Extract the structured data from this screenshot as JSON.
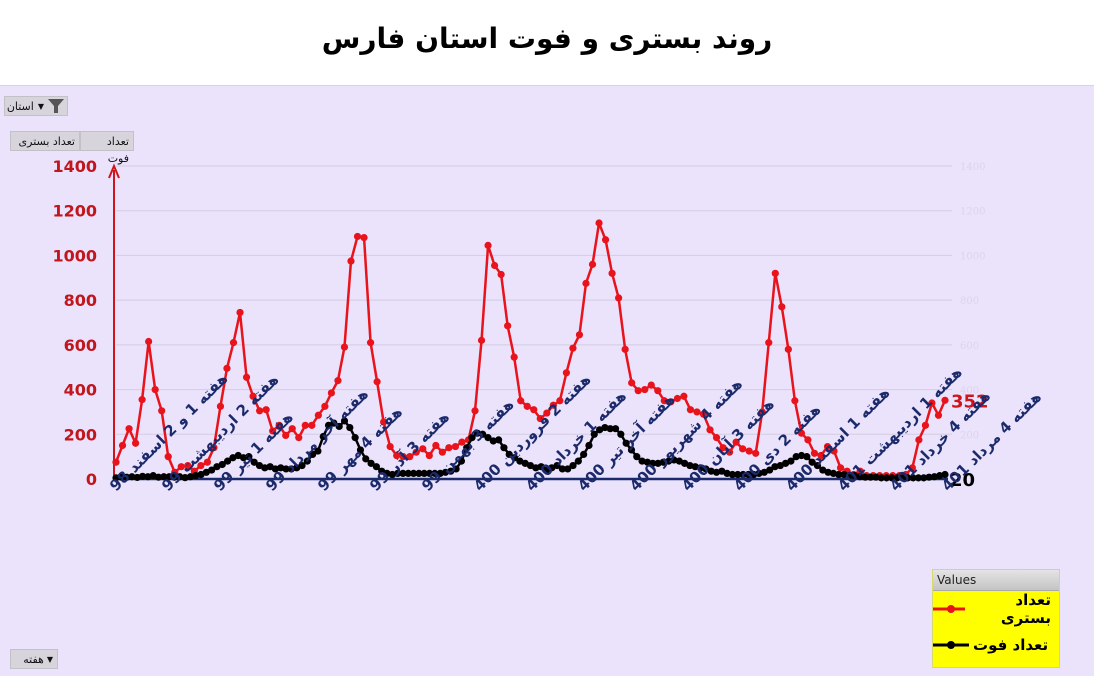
{
  "title": "روند بستری و فوت استان فارس",
  "controls": {
    "filter_label": "استان",
    "field_buttons": [
      "تعداد فوت",
      "تعداد بستری"
    ],
    "axis_field_label": "هفته",
    "dropdown_glyph": "▼",
    "filter_icon": "funnel-icon"
  },
  "legend": {
    "header": "Values",
    "items": [
      {
        "label": "تعداد بستری",
        "color": "#e8131b"
      },
      {
        "label": "تعداد فوت",
        "color": "#000000"
      }
    ]
  },
  "end_labels": {
    "hospitalized": "352",
    "deaths": "20"
  },
  "colors": {
    "hospitalized": "#e8131b",
    "deaths": "#000000",
    "axis_labels_left": "#c0161c",
    "x_labels": "#1b2a6b",
    "panel_bg": "#ebe2fc"
  },
  "chart_data": {
    "type": "line",
    "title": "روند بستری و فوت استان فارس",
    "xlabel": "هفته",
    "ylabel": "",
    "ylim": [
      0,
      1400
    ],
    "yticks": [
      0,
      200,
      400,
      600,
      800,
      1000,
      1200,
      1400
    ],
    "grid": true,
    "legend_position": "bottom-right",
    "x_tick_labels": [
      "هفته 1 و 2 اسفند 98",
      "هفته 2 اردیبهشت 99",
      "هفته 1 تیر 99",
      "هفته آخر مرداد 99",
      "هفته 4 مهر 99",
      "هفته 3 آذر 99",
      "هفته 3 بهمن 99",
      "هفته 2 فروردین 400",
      "هفته 1 خرداد 400",
      "هفته آخر تیر 400",
      "هفته 4 شهریور 400",
      "هفته 3 آبان 400",
      "هفته 2 دی 400",
      "هفته 1 اسفند 400",
      "هفته 1 اردیبهشت 401",
      "هفته 4 خرداد 401",
      "هفته 4 مرداد 401"
    ],
    "series": [
      {
        "name": "تعداد بستری",
        "color": "#e8131b",
        "last_value_label": 352,
        "values": [
          75,
          150,
          225,
          160,
          355,
          615,
          400,
          305,
          100,
          30,
          55,
          60,
          35,
          60,
          75,
          140,
          325,
          495,
          610,
          745,
          455,
          370,
          305,
          310,
          215,
          240,
          195,
          225,
          185,
          240,
          240,
          285,
          325,
          385,
          440,
          590,
          975,
          1085,
          1080,
          610,
          435,
          255,
          145,
          105,
          100,
          100,
          120,
          135,
          105,
          150,
          120,
          140,
          145,
          165,
          175,
          305,
          620,
          1045,
          955,
          915,
          685,
          545,
          350,
          325,
          310,
          270,
          295,
          330,
          350,
          475,
          585,
          645,
          875,
          960,
          1145,
          1070,
          920,
          810,
          580,
          430,
          395,
          400,
          420,
          395,
          350,
          345,
          360,
          370,
          310,
          300,
          290,
          220,
          185,
          140,
          120,
          165,
          135,
          125,
          115,
          300,
          610,
          920,
          770,
          580,
          350,
          205,
          175,
          115,
          105,
          145,
          125,
          50,
          35,
          20,
          35,
          15,
          15,
          15,
          15,
          15,
          15,
          20,
          50,
          175,
          240,
          340,
          285,
          352
        ]
      },
      {
        "name": "تعداد فوت",
        "color": "#000000",
        "last_value_label": 20,
        "values": [
          5,
          8,
          8,
          10,
          7,
          12,
          10,
          15,
          8,
          10,
          10,
          8,
          10,
          6,
          10,
          15,
          20,
          30,
          40,
          55,
          65,
          80,
          95,
          105,
          95,
          100,
          75,
          60,
          50,
          55,
          45,
          50,
          45,
          45,
          50,
          60,
          80,
          110,
          125,
          190,
          240,
          250,
          235,
          260,
          230,
          185,
          130,
          90,
          70,
          55,
          35,
          25,
          20,
          25,
          25,
          25,
          25,
          25,
          25,
          25,
          25,
          25,
          30,
          35,
          45,
          80,
          140,
          185,
          205,
          200,
          185,
          170,
          175,
          140,
          110,
          95,
          80,
          70,
          60,
          50,
          55,
          40,
          50,
          60,
          45,
          45,
          60,
          80,
          110,
          150,
          200,
          220,
          230,
          225,
          225,
          200,
          160,
          130,
          100,
          80,
          75,
          70,
          70,
          75,
          80,
          85,
          80,
          70,
          60,
          55,
          50,
          45,
          35,
          30,
          35,
          25,
          20,
          20,
          20,
          20,
          20,
          25,
          30,
          40,
          55,
          60,
          70,
          80,
          100,
          105,
          100,
          75,
          60,
          40,
          30,
          25,
          20,
          20,
          15,
          15,
          10,
          8,
          8,
          8,
          5,
          5,
          5,
          5,
          5,
          5,
          5,
          5,
          5,
          8,
          10,
          15,
          20
        ]
      }
    ]
  }
}
